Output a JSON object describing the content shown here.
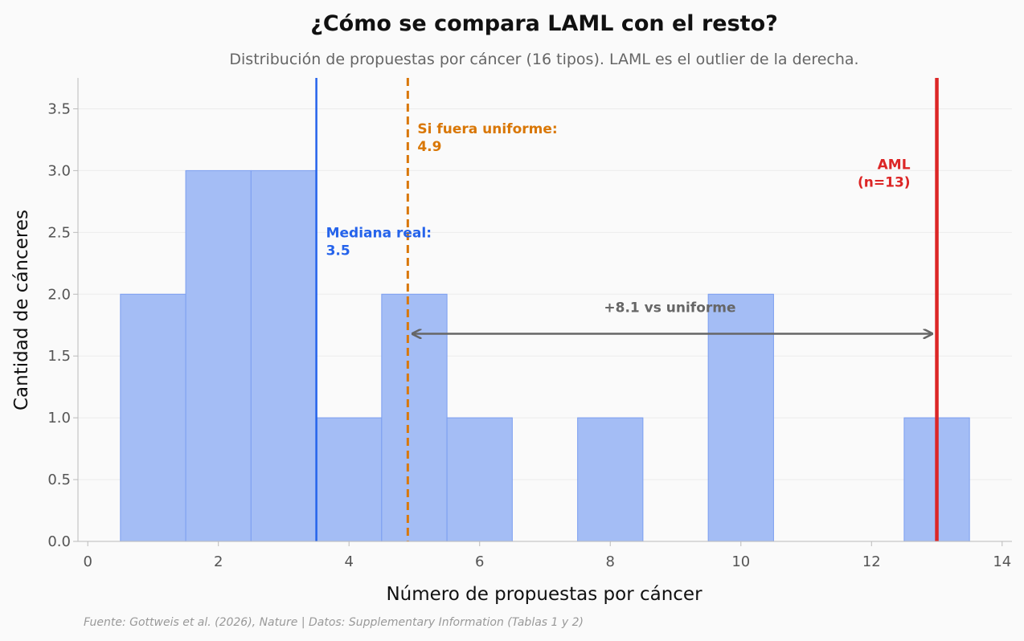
{
  "chart_data": {
    "type": "bar",
    "title": "¿Cómo se compara LAML con el resto?",
    "subtitle": "Distribución de propuestas por cáncer (16 tipos). LAML es el outlier de la derecha.",
    "xlabel": "Número de propuestas por cáncer",
    "ylabel": "Cantidad de cánceres",
    "xlim": [
      -0.15,
      14.15
    ],
    "ylim": [
      0,
      3.75
    ],
    "x_ticks": [
      0,
      2,
      4,
      6,
      8,
      10,
      12,
      14
    ],
    "y_ticks": [
      0.0,
      0.5,
      1.0,
      1.5,
      2.0,
      2.5,
      3.0,
      3.5
    ],
    "x_tick_labels": [
      "0",
      "2",
      "4",
      "6",
      "8",
      "10",
      "12",
      "14"
    ],
    "y_tick_labels": [
      "0.0",
      "0.5",
      "1.0",
      "1.5",
      "2.0",
      "2.5",
      "3.0",
      "3.5"
    ],
    "grid": "horizontal",
    "bins": [
      {
        "x": 1,
        "count": 2
      },
      {
        "x": 2,
        "count": 3
      },
      {
        "x": 3,
        "count": 3
      },
      {
        "x": 4,
        "count": 1
      },
      {
        "x": 5,
        "count": 2
      },
      {
        "x": 6,
        "count": 1
      },
      {
        "x": 8,
        "count": 1
      },
      {
        "x": 10,
        "count": 2
      },
      {
        "x": 13,
        "count": 1
      }
    ],
    "bin_width": 1,
    "reference_lines": [
      {
        "name": "median",
        "x": 3.5,
        "style": "solid",
        "color": "#2563eb",
        "label_line1": "Mediana real:",
        "label_line2": "3.5"
      },
      {
        "name": "uniform",
        "x": 4.9,
        "style": "dashed",
        "color": "#d97706",
        "label_line1": "Si fuera uniforme:",
        "label_line2": "4.9"
      },
      {
        "name": "aml",
        "x": 13,
        "style": "solid",
        "color": "#dc2626",
        "label_line1": "AML",
        "label_line2": "(n=13)"
      }
    ],
    "arrow": {
      "from_x": 4.9,
      "to_x": 13,
      "y": 1.68,
      "label": "+8.1 vs uniforme",
      "color": "#666666"
    },
    "colors": {
      "bar_fill": "#a4bdf5",
      "bar_stroke": "#7b9ef0"
    }
  },
  "source": "Fuente: Gottweis et al. (2026), Nature | Datos: Supplementary Information (Tablas 1 y 2)"
}
